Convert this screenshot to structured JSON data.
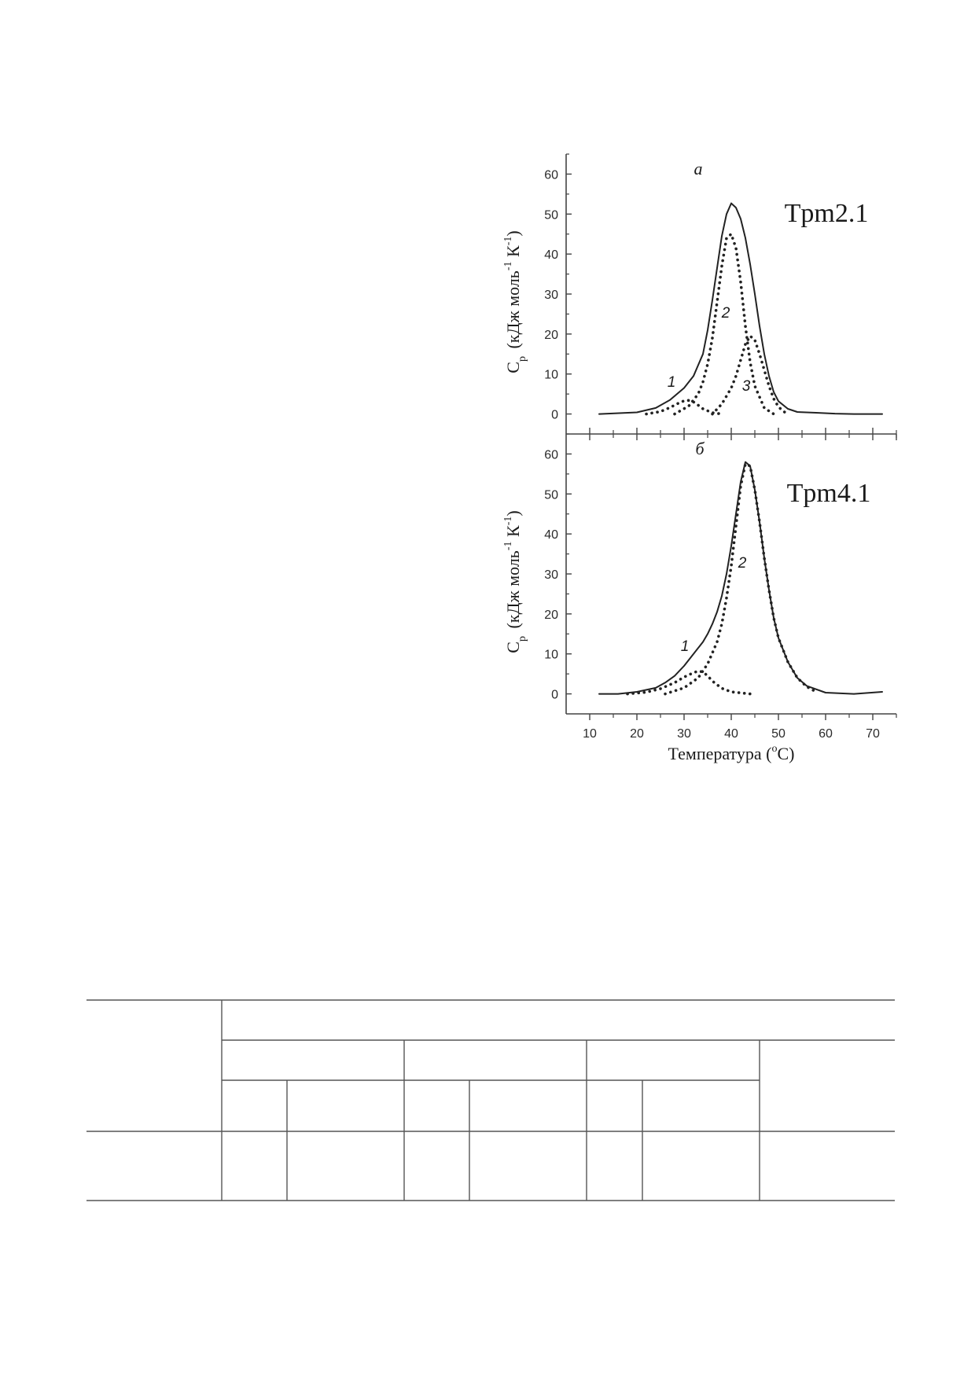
{
  "chart_data": [
    {
      "type": "line",
      "panel_letter": "а",
      "protein_label": "Tpm2.1",
      "ylabel_main": "C",
      "ylabel_sub": "p",
      "ylabel_units": "(кДж моль",
      "ylabel_sup1": "-1",
      "ylabel_k": " К",
      "ylabel_sup2": "-1",
      "ylabel_close": ")",
      "xlim": [
        5,
        75
      ],
      "ylim": [
        -5,
        65
      ],
      "x_ticks": [
        10,
        20,
        30,
        40,
        50,
        60,
        70
      ],
      "y_ticks": [
        0,
        10,
        20,
        30,
        40,
        50,
        60
      ],
      "y_tick_labels": [
        "0",
        "10",
        "20",
        "30",
        "40",
        "50",
        "60"
      ],
      "grid": false,
      "series": [
        {
          "style": "solid",
          "x": [
            12,
            20,
            24,
            27,
            30,
            32,
            34,
            35,
            36,
            37,
            38,
            39,
            40,
            41,
            42,
            43,
            44,
            45,
            46,
            47,
            48,
            49,
            50,
            52,
            54,
            58,
            62,
            66,
            72
          ],
          "y": [
            0,
            0.4,
            1.5,
            3.5,
            6.5,
            9.5,
            15,
            21,
            28.5,
            36.5,
            44.5,
            50,
            52.7,
            51.6,
            48.8,
            44,
            37.5,
            30,
            22,
            15,
            9.5,
            5.5,
            3.2,
            1.3,
            0.5,
            0.3,
            0.1,
            0,
            0
          ]
        },
        {
          "style": "dotted",
          "label": "1",
          "x": [
            22,
            25,
            27,
            29,
            30,
            31,
            32,
            33,
            34,
            36,
            38
          ],
          "y": [
            0,
            0.6,
            1.6,
            2.8,
            3.3,
            3.4,
            3,
            2.2,
            1.3,
            0.3,
            0
          ]
        },
        {
          "style": "dotted",
          "label": "2",
          "x": [
            28,
            31,
            33,
            34,
            35,
            36,
            37,
            38,
            39,
            40,
            41,
            42,
            43,
            44,
            45,
            47,
            49
          ],
          "y": [
            0,
            2,
            5,
            8,
            12.5,
            19,
            28,
            37,
            44,
            45,
            41.5,
            33,
            22,
            13,
            7,
            1.5,
            0
          ]
        },
        {
          "style": "dotted",
          "label": "3",
          "x": [
            36,
            38,
            40,
            41,
            42,
            43,
            44,
            45,
            46,
            47,
            48,
            49,
            50,
            51,
            52
          ],
          "y": [
            0,
            2.5,
            6.5,
            9.5,
            13.5,
            17.5,
            19.5,
            18.5,
            15,
            11,
            7,
            3.8,
            1.8,
            0.7,
            0
          ]
        }
      ],
      "annotations": [
        "1",
        "2",
        "3"
      ]
    },
    {
      "type": "line",
      "panel_letter": "б",
      "protein_label": "Tpm4.1",
      "ylabel_main": "C",
      "ylabel_sub": "p",
      "ylabel_units": "(кДж моль",
      "ylabel_sup1": "-1",
      "ylabel_k": " К",
      "ylabel_sup2": "-1",
      "ylabel_close": ")",
      "xlabel_main": "Температура (",
      "xlabel_sup": "o",
      "xlabel_end": "C)",
      "xlim": [
        5,
        75
      ],
      "ylim": [
        -5,
        65
      ],
      "x_ticks": [
        10,
        20,
        30,
        40,
        50,
        60,
        70
      ],
      "x_tick_labels": [
        "10",
        "20",
        "30",
        "40",
        "50",
        "60",
        "70"
      ],
      "y_ticks": [
        0,
        10,
        20,
        30,
        40,
        50,
        60
      ],
      "y_tick_labels": [
        "0",
        "10",
        "20",
        "30",
        "40",
        "50",
        "60"
      ],
      "grid": false,
      "series": [
        {
          "style": "solid",
          "x": [
            12,
            16,
            20,
            24,
            26,
            28,
            30,
            32,
            34,
            35,
            36,
            37,
            38,
            39,
            40,
            41,
            42,
            43,
            44,
            45,
            46,
            47,
            48,
            49,
            50,
            52,
            54,
            56,
            60,
            66,
            72
          ],
          "y": [
            0,
            0,
            0.5,
            1.5,
            2.8,
            4.5,
            7,
            10,
            13,
            15,
            17.5,
            20.5,
            24.5,
            30,
            37,
            45,
            53,
            58,
            57,
            51,
            43,
            34,
            26,
            19,
            14,
            8,
            4,
            2,
            0.3,
            0,
            0.5
          ]
        },
        {
          "style": "dotted",
          "label": "1",
          "x": [
            18,
            22,
            25,
            28,
            30,
            32,
            33,
            34,
            35,
            36,
            38,
            40,
            44
          ],
          "y": [
            0,
            0.4,
            1.3,
            2.8,
            4.2,
            5.3,
            5.7,
            5.5,
            4.5,
            3.2,
            1.4,
            0.5,
            0
          ]
        },
        {
          "style": "dotted",
          "label": "2",
          "x": [
            26,
            30,
            33,
            35,
            37,
            38,
            39,
            40,
            41,
            42,
            43,
            44,
            45,
            46,
            47,
            48,
            49,
            50,
            52,
            54,
            56,
            58
          ],
          "y": [
            0,
            1.5,
            4,
            7.5,
            13,
            17.5,
            24,
            32,
            42,
            52,
            57.5,
            57,
            51,
            43,
            34,
            26,
            19,
            14,
            8,
            4,
            1.8,
            0.5
          ]
        }
      ],
      "annotations": [
        "1",
        "2"
      ]
    }
  ]
}
